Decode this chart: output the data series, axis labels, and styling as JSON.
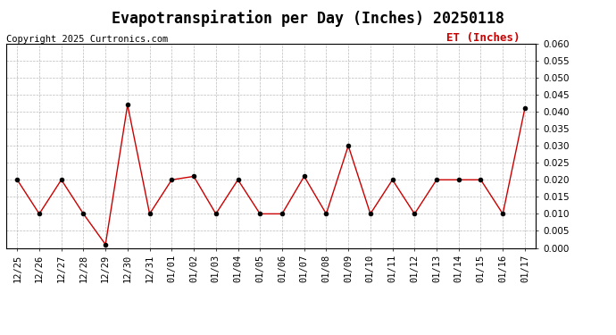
{
  "title": "Evapotranspiration per Day (Inches) 20250118",
  "copyright": "Copyright 2025 Curtronics.com",
  "legend_label": "ET (Inches)",
  "dates": [
    "12/25",
    "12/26",
    "12/27",
    "12/28",
    "12/29",
    "12/30",
    "12/31",
    "01/01",
    "01/02",
    "01/03",
    "01/04",
    "01/05",
    "01/06",
    "01/07",
    "01/08",
    "01/09",
    "01/10",
    "01/11",
    "01/12",
    "01/13",
    "01/14",
    "01/15",
    "01/16",
    "01/17"
  ],
  "values": [
    0.02,
    0.01,
    0.02,
    0.01,
    0.001,
    0.042,
    0.01,
    0.02,
    0.021,
    0.01,
    0.02,
    0.01,
    0.01,
    0.021,
    0.01,
    0.03,
    0.01,
    0.02,
    0.01,
    0.02,
    0.02,
    0.02,
    0.01,
    0.041
  ],
  "line_color": "#cc0000",
  "marker_color": "#000000",
  "background_color": "#ffffff",
  "grid_color": "#aaaaaa",
  "ylim": [
    0.0,
    0.06
  ],
  "yticks": [
    0.0,
    0.005,
    0.01,
    0.015,
    0.02,
    0.025,
    0.03,
    0.035,
    0.04,
    0.045,
    0.05,
    0.055,
    0.06
  ],
  "title_fontsize": 12,
  "copyright_fontsize": 7.5,
  "legend_fontsize": 9,
  "tick_fontsize": 7.5
}
